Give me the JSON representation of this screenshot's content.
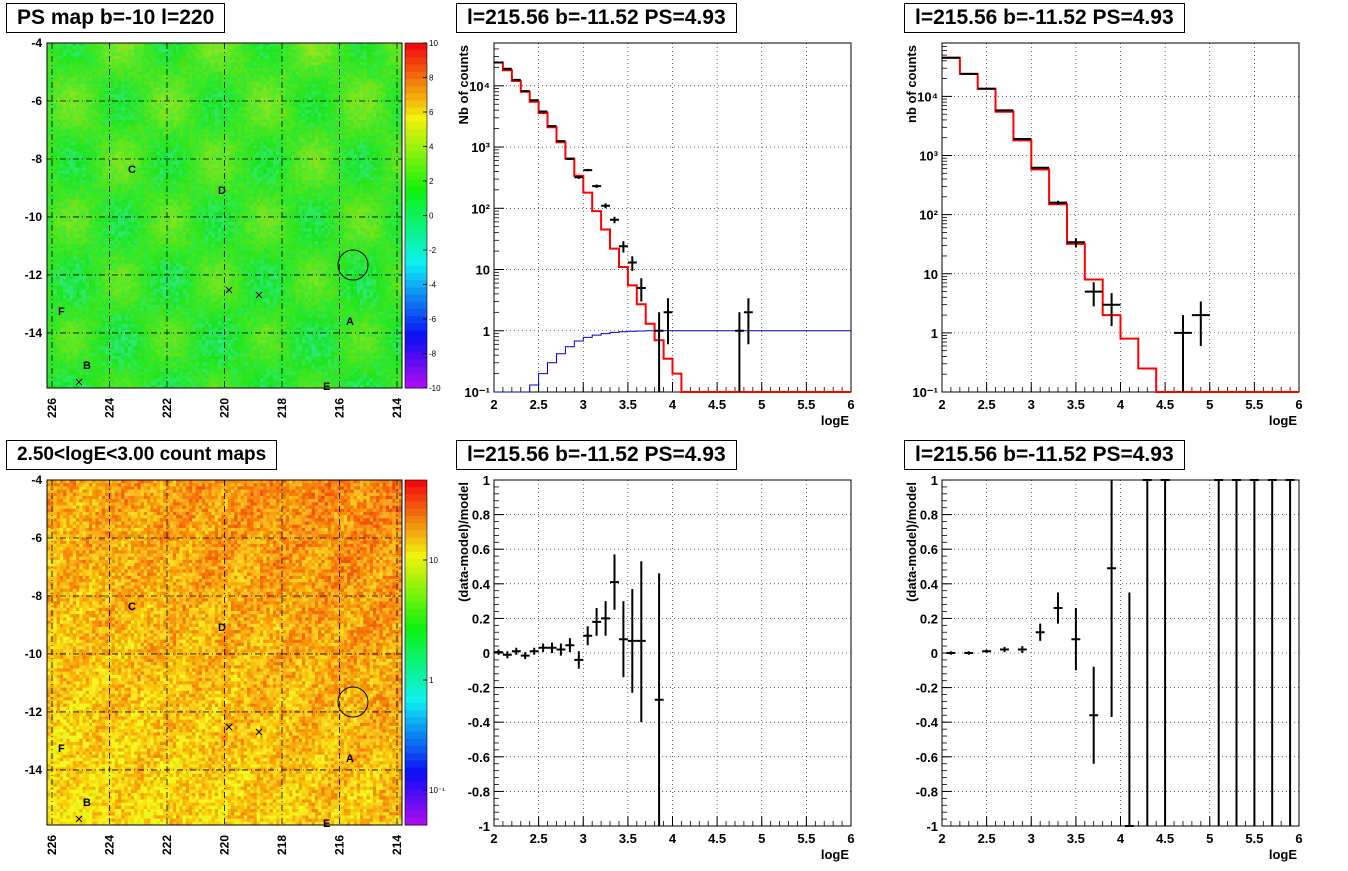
{
  "colors": {
    "frame": "#000000",
    "grid": "#000000",
    "model": "#ff0000",
    "blue_model": "#0000cc",
    "data": "#000000",
    "map_green": "#33dd33",
    "map_red": "#ff3311"
  },
  "panels": {
    "map_top": {
      "title": "PS map b=-10 l=220",
      "y_ticks": [
        "-4",
        "-6",
        "-8",
        "-10",
        "-12",
        "-14"
      ],
      "x_ticks": [
        "226",
        "224",
        "222",
        "220",
        "218",
        "216",
        "214"
      ],
      "palette_ticks": [
        "10",
        "8",
        "6",
        "4",
        "2",
        "0",
        "-2",
        "-4",
        "-6",
        "-8",
        "-10"
      ],
      "sources": [
        "A",
        "B",
        "C",
        "D",
        "E",
        "F"
      ]
    },
    "map_bottom": {
      "title": "2.50<logE<3.00 count maps",
      "y_ticks": [
        "-4",
        "-6",
        "-8",
        "-10",
        "-12",
        "-14"
      ],
      "x_ticks": [
        "226",
        "224",
        "222",
        "220",
        "218",
        "216",
        "214"
      ],
      "palette_ticks": [
        "10",
        "1",
        "10⁻¹"
      ],
      "sources": [
        "A",
        "B",
        "C",
        "D",
        "E",
        "F"
      ]
    }
  },
  "chart_data": [
    {
      "type": "line",
      "title": "l=215.56 b=-11.52 PS=4.93",
      "xlabel": "logE",
      "ylabel": "Nb of counts",
      "xlim": [
        2,
        6
      ],
      "ylim": [
        0.1,
        50000
      ],
      "yscale": "log",
      "x_ticks": [
        "2",
        "2.5",
        "3",
        "3.5",
        "4",
        "4.5",
        "5",
        "5.5",
        "6"
      ],
      "y_ticks": [
        "10⁻¹",
        "1",
        "10",
        "10²",
        "10³",
        "10⁴"
      ],
      "grid": true,
      "series": [
        {
          "role": "model-red",
          "bin_edges": [
            2.0,
            2.1,
            2.2,
            2.3,
            2.4,
            2.5,
            2.6,
            2.7,
            2.8,
            2.9,
            3.0,
            3.1,
            3.2,
            3.3,
            3.4,
            3.5,
            3.6,
            3.7,
            3.8,
            3.9,
            4.0,
            4.1,
            4.2,
            4.3,
            4.4,
            4.5,
            4.6,
            4.7,
            4.8,
            4.9,
            5.0,
            5.1,
            5.2,
            5.3,
            5.4,
            5.5,
            5.6,
            5.7,
            5.8,
            5.9,
            6.0
          ],
          "values": [
            24000,
            18000,
            12000,
            8000,
            5500,
            3600,
            2100,
            1200,
            650,
            340,
            180,
            90,
            45,
            22,
            11,
            5.5,
            2.7,
            1.3,
            0.7,
            0.35,
            0.2,
            0.1,
            0.1,
            0.1,
            0.1,
            0.1,
            0.1,
            0.1,
            0.1,
            0.1,
            0.1,
            0.1,
            0.1,
            0.1,
            0.1,
            0.1,
            0.1,
            0.1,
            0.1,
            0.1
          ]
        },
        {
          "role": "model-blue",
          "bin_edges": [
            2.0,
            2.1,
            2.2,
            2.3,
            2.4,
            2.5,
            2.6,
            2.7,
            2.8,
            2.9,
            3.0,
            3.1,
            3.2,
            3.3,
            3.4,
            3.5,
            3.6,
            3.7,
            3.8,
            3.9,
            4.0,
            6.0
          ],
          "values": [
            0.1,
            0.1,
            0.1,
            0.1,
            0.13,
            0.2,
            0.3,
            0.42,
            0.55,
            0.68,
            0.78,
            0.85,
            0.9,
            0.94,
            0.96,
            0.98,
            0.99,
            1,
            1,
            1,
            1
          ]
        },
        {
          "role": "data",
          "points": [
            {
              "x": 2.05,
              "y": 24000,
              "ylo": 23500,
              "yhi": 24500
            },
            {
              "x": 2.15,
              "y": 19000,
              "ylo": 18600,
              "yhi": 19400
            },
            {
              "x": 2.25,
              "y": 12500,
              "ylo": 12200,
              "yhi": 12800
            },
            {
              "x": 2.35,
              "y": 8200,
              "ylo": 8000,
              "yhi": 8400
            },
            {
              "x": 2.45,
              "y": 5800,
              "ylo": 5650,
              "yhi": 5950
            },
            {
              "x": 2.55,
              "y": 3800,
              "ylo": 3700,
              "yhi": 3900
            },
            {
              "x": 2.65,
              "y": 2200,
              "ylo": 2150,
              "yhi": 2250
            },
            {
              "x": 2.75,
              "y": 1250,
              "ylo": 1210,
              "yhi": 1290
            },
            {
              "x": 2.85,
              "y": 640,
              "ylo": 615,
              "yhi": 665
            },
            {
              "x": 2.95,
              "y": 320,
              "ylo": 302,
              "yhi": 338
            },
            {
              "x": 3.05,
              "y": 420,
              "ylo": 400,
              "yhi": 440
            },
            {
              "x": 3.15,
              "y": 230,
              "ylo": 215,
              "yhi": 245
            },
            {
              "x": 3.25,
              "y": 110,
              "ylo": 100,
              "yhi": 120
            },
            {
              "x": 3.35,
              "y": 65,
              "ylo": 57,
              "yhi": 73
            },
            {
              "x": 3.45,
              "y": 24,
              "ylo": 19,
              "yhi": 29
            },
            {
              "x": 3.55,
              "y": 13,
              "ylo": 9.5,
              "yhi": 16.5
            },
            {
              "x": 3.65,
              "y": 5,
              "ylo": 3,
              "yhi": 7.2
            },
            {
              "x": 3.85,
              "y": 1,
              "ylo": 0.1,
              "yhi": 2
            },
            {
              "x": 3.95,
              "y": 2,
              "ylo": 0.6,
              "yhi": 3.4
            },
            {
              "x": 4.75,
              "y": 1,
              "ylo": 0.1,
              "yhi": 2
            },
            {
              "x": 4.85,
              "y": 2,
              "ylo": 0.6,
              "yhi": 3.4
            }
          ]
        }
      ]
    },
    {
      "type": "line",
      "title": "l=215.56 b=-11.52 PS=4.93",
      "xlabel": "logE",
      "ylabel": "nb of counts",
      "xlim": [
        2,
        6
      ],
      "ylim": [
        0.1,
        80000
      ],
      "yscale": "log",
      "x_ticks": [
        "2",
        "2.5",
        "3",
        "3.5",
        "4",
        "4.5",
        "5",
        "5.5",
        "6"
      ],
      "y_ticks": [
        "10⁻¹",
        "1",
        "10",
        "10²",
        "10³",
        "10⁴"
      ],
      "grid": true,
      "series": [
        {
          "role": "model-red",
          "bin_edges": [
            2.0,
            2.2,
            2.4,
            2.6,
            2.8,
            3.0,
            3.2,
            3.4,
            3.6,
            3.8,
            4.0,
            4.2,
            4.4,
            4.6,
            4.8,
            5.0,
            5.2,
            5.4,
            5.6,
            5.8,
            6.0
          ],
          "values": [
            45000,
            24000,
            13500,
            5500,
            1800,
            580,
            150,
            32,
            8,
            2,
            0.8,
            0.25,
            0.1,
            0.1,
            0.1,
            0.1,
            0.1,
            0.1,
            0.1,
            0.1
          ]
        },
        {
          "role": "data",
          "points": [
            {
              "x": 2.1,
              "y": 45000,
              "ylo": 44500,
              "yhi": 45500
            },
            {
              "x": 2.3,
              "y": 24000,
              "ylo": 23600,
              "yhi": 24400
            },
            {
              "x": 2.5,
              "y": 13500,
              "ylo": 13200,
              "yhi": 13800
            },
            {
              "x": 2.7,
              "y": 5800,
              "ylo": 5650,
              "yhi": 5950
            },
            {
              "x": 2.9,
              "y": 1900,
              "ylo": 1850,
              "yhi": 1950
            },
            {
              "x": 3.1,
              "y": 620,
              "ylo": 595,
              "yhi": 645
            },
            {
              "x": 3.3,
              "y": 160,
              "ylo": 148,
              "yhi": 172
            },
            {
              "x": 3.5,
              "y": 34,
              "ylo": 28,
              "yhi": 40
            },
            {
              "x": 3.7,
              "y": 5,
              "ylo": 2.8,
              "yhi": 7.2
            },
            {
              "x": 3.9,
              "y": 3,
              "ylo": 1.3,
              "yhi": 4.7
            },
            {
              "x": 4.7,
              "y": 1,
              "ylo": 0.1,
              "yhi": 2
            },
            {
              "x": 4.9,
              "y": 2,
              "ylo": 0.6,
              "yhi": 3.4
            }
          ]
        }
      ]
    },
    {
      "type": "scatter",
      "title": "l=215.56 b=-11.52 PS=4.93",
      "xlabel": "logE",
      "ylabel": "(data-model)/model",
      "xlim": [
        2,
        6
      ],
      "ylim": [
        -1,
        1
      ],
      "x_ticks": [
        "2",
        "2.5",
        "3",
        "3.5",
        "4",
        "4.5",
        "5",
        "5.5",
        "6"
      ],
      "y_ticks": [
        "-1",
        "-0.8",
        "-0.6",
        "-0.4",
        "-0.2",
        "0",
        "0.2",
        "0.4",
        "0.6",
        "0.8",
        "1"
      ],
      "grid": true,
      "series": [
        {
          "role": "data",
          "points": [
            {
              "x": 2.05,
              "y": 0.005,
              "ylo": -0.01,
              "yhi": 0.02
            },
            {
              "x": 2.15,
              "y": -0.01,
              "ylo": -0.03,
              "yhi": 0.01
            },
            {
              "x": 2.25,
              "y": 0.01,
              "ylo": -0.01,
              "yhi": 0.03
            },
            {
              "x": 2.35,
              "y": -0.015,
              "ylo": -0.035,
              "yhi": 0.005
            },
            {
              "x": 2.45,
              "y": 0.01,
              "ylo": -0.01,
              "yhi": 0.03
            },
            {
              "x": 2.55,
              "y": 0.03,
              "ylo": 0.005,
              "yhi": 0.055
            },
            {
              "x": 2.65,
              "y": 0.03,
              "ylo": 0,
              "yhi": 0.06
            },
            {
              "x": 2.75,
              "y": 0.02,
              "ylo": -0.015,
              "yhi": 0.055
            },
            {
              "x": 2.85,
              "y": 0.045,
              "ylo": 0.005,
              "yhi": 0.085
            },
            {
              "x": 2.95,
              "y": -0.04,
              "ylo": -0.09,
              "yhi": 0.01
            },
            {
              "x": 3.05,
              "y": 0.1,
              "ylo": 0.045,
              "yhi": 0.155
            },
            {
              "x": 3.15,
              "y": 0.18,
              "ylo": 0.1,
              "yhi": 0.26
            },
            {
              "x": 3.25,
              "y": 0.2,
              "ylo": 0.1,
              "yhi": 0.3
            },
            {
              "x": 3.35,
              "y": 0.41,
              "ylo": 0.25,
              "yhi": 0.57
            },
            {
              "x": 3.45,
              "y": 0.08,
              "ylo": -0.14,
              "yhi": 0.3
            },
            {
              "x": 3.55,
              "y": 0.07,
              "ylo": -0.23,
              "yhi": 0.37
            },
            {
              "x": 3.65,
              "y": 0.07,
              "ylo": -0.4,
              "yhi": 0.53
            },
            {
              "x": 3.85,
              "y": -0.27,
              "ylo": -1,
              "yhi": 0.46
            }
          ]
        }
      ]
    },
    {
      "type": "scatter",
      "title": "l=215.56 b=-11.52 PS=4.93",
      "xlabel": "logE",
      "ylabel": "(data-model)/model",
      "xlim": [
        2,
        6
      ],
      "ylim": [
        -1,
        1
      ],
      "x_ticks": [
        "2",
        "2.5",
        "3",
        "3.5",
        "4",
        "4.5",
        "5",
        "5.5",
        "6"
      ],
      "y_ticks": [
        "-1",
        "-0.8",
        "-0.6",
        "-0.4",
        "-0.2",
        "0",
        "0.2",
        "0.4",
        "0.6",
        "0.8",
        "1"
      ],
      "grid": true,
      "series": [
        {
          "role": "data",
          "points": [
            {
              "x": 2.1,
              "y": 0,
              "ylo": -0.01,
              "yhi": 0.01
            },
            {
              "x": 2.3,
              "y": 0,
              "ylo": -0.01,
              "yhi": 0.01
            },
            {
              "x": 2.5,
              "y": 0.01,
              "ylo": 0,
              "yhi": 0.02
            },
            {
              "x": 2.7,
              "y": 0.02,
              "ylo": 0.005,
              "yhi": 0.035
            },
            {
              "x": 2.9,
              "y": 0.02,
              "ylo": 0,
              "yhi": 0.04
            },
            {
              "x": 3.1,
              "y": 0.12,
              "ylo": 0.07,
              "yhi": 0.17
            },
            {
              "x": 3.3,
              "y": 0.26,
              "ylo": 0.17,
              "yhi": 0.35
            },
            {
              "x": 3.5,
              "y": 0.08,
              "ylo": -0.1,
              "yhi": 0.26
            },
            {
              "x": 3.7,
              "y": -0.36,
              "ylo": -0.64,
              "yhi": -0.08
            },
            {
              "x": 3.9,
              "y": 0.49,
              "ylo": -0.37,
              "yhi": 1
            },
            {
              "x": 4.1,
              "y": -1,
              "ylo": -1,
              "yhi": 0.35
            },
            {
              "x": 4.3,
              "y": 1,
              "ylo": -1,
              "yhi": 1
            },
            {
              "x": 4.5,
              "y": 1,
              "ylo": -1,
              "yhi": 1
            },
            {
              "x": 5.1,
              "y": 1,
              "ylo": -1,
              "yhi": 1
            },
            {
              "x": 5.3,
              "y": 1,
              "ylo": -1,
              "yhi": 1
            },
            {
              "x": 5.5,
              "y": 1,
              "ylo": -1,
              "yhi": 1
            },
            {
              "x": 5.7,
              "y": 1,
              "ylo": -1,
              "yhi": 1
            },
            {
              "x": 5.9,
              "y": 1,
              "ylo": -1,
              "yhi": 1
            }
          ]
        }
      ]
    }
  ]
}
